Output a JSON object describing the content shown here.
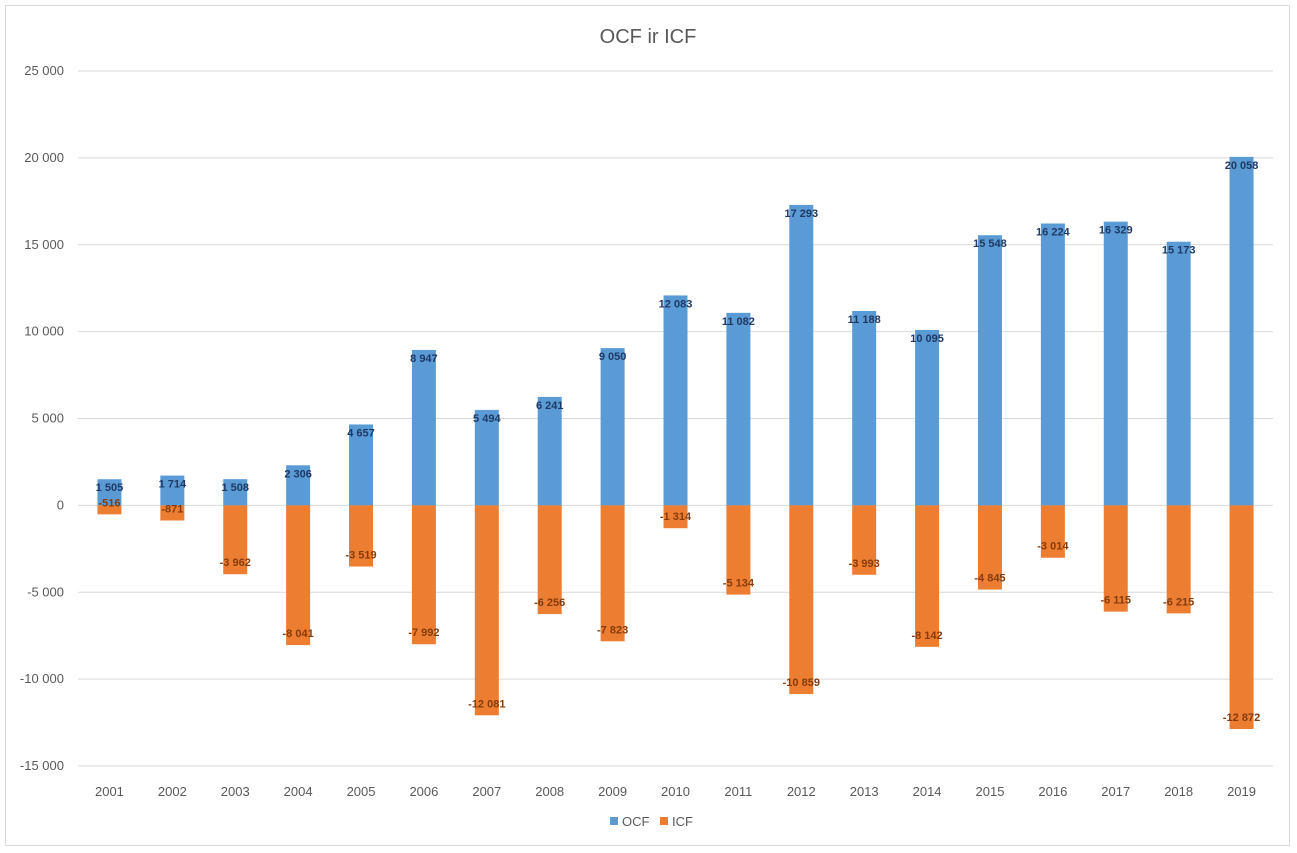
{
  "chart_data": {
    "type": "bar",
    "title": "OCF ir ICF",
    "categories": [
      "2001",
      "2002",
      "2003",
      "2004",
      "2005",
      "2006",
      "2007",
      "2008",
      "2009",
      "2010",
      "2011",
      "2012",
      "2013",
      "2014",
      "2015",
      "2016",
      "2017",
      "2018",
      "2019"
    ],
    "series": [
      {
        "name": "OCF",
        "color": "#5b9bd5",
        "label_color": "#1f3864",
        "values": [
          1505,
          1714,
          1508,
          2306,
          4657,
          8947,
          5494,
          6241,
          9050,
          12083,
          11082,
          17293,
          11188,
          10095,
          15548,
          16224,
          16329,
          15173,
          20058
        ],
        "labels": [
          "1 505",
          "1 714",
          "1 508",
          "2 306",
          "4 657",
          "8 947",
          "5 494",
          "6 241",
          "9 050",
          "12 083",
          "11 082",
          "17 293",
          "11 188",
          "10 095",
          "15 548",
          "16 224",
          "16 329",
          "15 173",
          "20 058"
        ]
      },
      {
        "name": "ICF",
        "color": "#ed7d31",
        "label_color": "#843c0c",
        "values": [
          -516,
          -871,
          -3962,
          -8041,
          -3519,
          -7992,
          -12081,
          -6256,
          -7823,
          -1314,
          -5134,
          -10859,
          -3993,
          -8142,
          -4845,
          -3014,
          -6115,
          -6215,
          -12872
        ],
        "labels": [
          "-516",
          "-871",
          "-3 962",
          "-8 041",
          "-3 519",
          "-7 992",
          "-12 081",
          "-6 256",
          "-7 823",
          "-1 314",
          "-5 134",
          "-10 859",
          "-3 993",
          "-8 142",
          "-4 845",
          "-3 014",
          "-6 115",
          "-6 215",
          "-12 872"
        ]
      }
    ],
    "ylim": [
      -15000,
      25000
    ],
    "yticks": [
      25000,
      20000,
      15000,
      10000,
      5000,
      0,
      -5000,
      -10000,
      -15000
    ],
    "ytick_labels": [
      "25 000",
      "20 000",
      "15 000",
      "10 000",
      "5 000",
      "0",
      "-5 000",
      "-10 000",
      "-15 000"
    ],
    "stacked": true,
    "grid": true,
    "legend_position": "bottom"
  }
}
